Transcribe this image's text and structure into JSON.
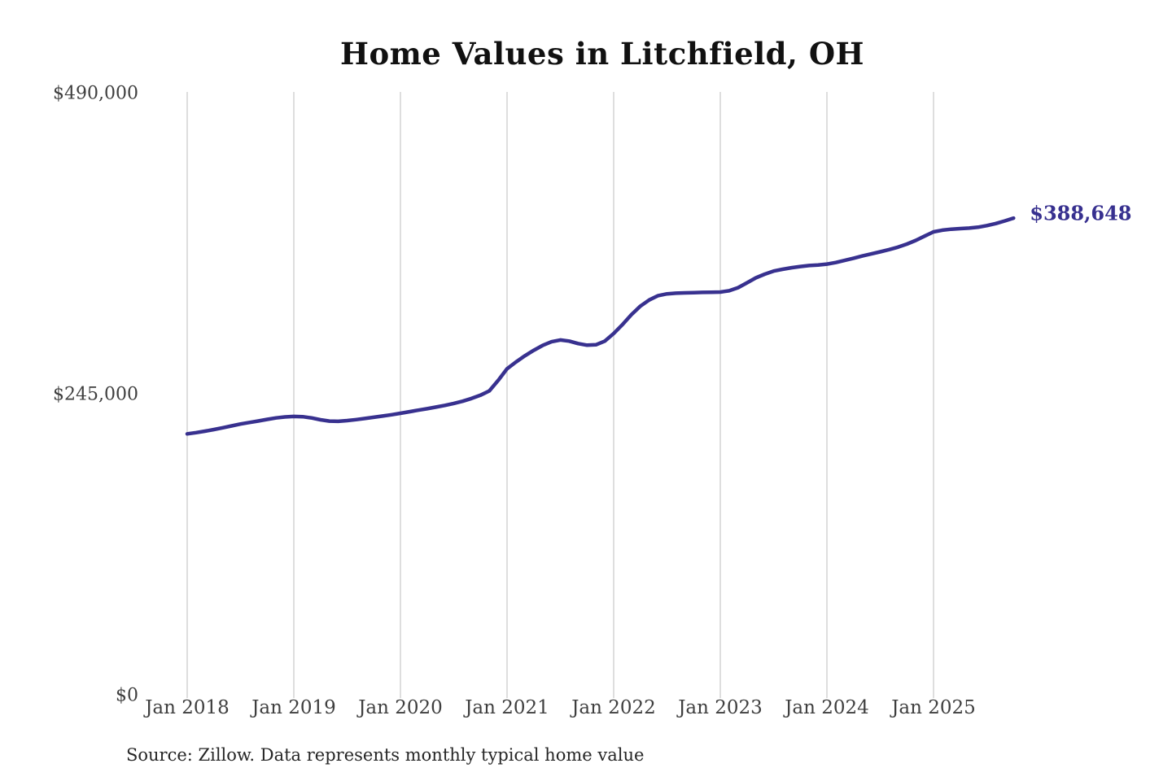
{
  "title": "Home Values in Litchfield, OH",
  "footer": {
    "source": "Source: Zillow. Data represents monthly typical home value"
  },
  "colors": {
    "line": "#38318f",
    "end_label": "#37308f",
    "gridline": "#cccccc",
    "title_text": "#111111",
    "axis_text": "#3f3f3f",
    "source_text": "#262626",
    "background": "#ffffff"
  },
  "chart_data": {
    "type": "line",
    "title": "Home Values in Litchfield, OH",
    "xlabel": "",
    "ylabel": "",
    "ylim": [
      0,
      490000
    ],
    "grid": "vertical-only",
    "legend": "none",
    "end_label": "$388,648",
    "final_value": 388648,
    "x_tick_labels": [
      "Jan 2018",
      "Jan 2019",
      "Jan 2020",
      "Jan 2021",
      "Jan 2022",
      "Jan 2023",
      "Jan 2024",
      "Jan 2025"
    ],
    "y_ticks": [
      {
        "label": "$0",
        "value": 0
      },
      {
        "label": "$245,000",
        "value": 245000
      },
      {
        "label": "$490,000",
        "value": 490000
      }
    ],
    "series": [
      {
        "name": "Monthly typical home value",
        "months": [
          "Jan 2018",
          "Feb 2018",
          "Mar 2018",
          "Apr 2018",
          "May 2018",
          "Jun 2018",
          "Jul 2018",
          "Aug 2018",
          "Sep 2018",
          "Oct 2018",
          "Nov 2018",
          "Dec 2018",
          "Jan 2019",
          "Feb 2019",
          "Mar 2019",
          "Apr 2019",
          "May 2019",
          "Jun 2019",
          "Jul 2019",
          "Aug 2019",
          "Sep 2019",
          "Oct 2019",
          "Nov 2019",
          "Dec 2019",
          "Jan 2020",
          "Feb 2020",
          "Mar 2020",
          "Apr 2020",
          "May 2020",
          "Jun 2020",
          "Jul 2020",
          "Aug 2020",
          "Sep 2020",
          "Oct 2020",
          "Nov 2020",
          "Dec 2020",
          "Jan 2021",
          "Feb 2021",
          "Mar 2021",
          "Apr 2021",
          "May 2021",
          "Jun 2021",
          "Jul 2021",
          "Aug 2021",
          "Sep 2021",
          "Oct 2021",
          "Nov 2021",
          "Dec 2021",
          "Jan 2022",
          "Feb 2022",
          "Mar 2022",
          "Apr 2022",
          "May 2022",
          "Jun 2022",
          "Jul 2022",
          "Aug 2022",
          "Sep 2022",
          "Oct 2022",
          "Nov 2022",
          "Dec 2022",
          "Jan 2023",
          "Feb 2023",
          "Mar 2023",
          "Apr 2023",
          "May 2023",
          "Jun 2023",
          "Jul 2023",
          "Aug 2023",
          "Sep 2023",
          "Oct 2023",
          "Nov 2023",
          "Dec 2023",
          "Jan 2024",
          "Feb 2024",
          "Mar 2024",
          "Apr 2024",
          "May 2024",
          "Jun 2024",
          "Jul 2024",
          "Aug 2024",
          "Sep 2024",
          "Oct 2024",
          "Nov 2024",
          "Dec 2024",
          "Jan 2025",
          "Feb 2025",
          "Mar 2025",
          "Apr 2025",
          "May 2025",
          "Jun 2025",
          "Jul 2025",
          "Aug 2025",
          "Sep 2025",
          "Oct 2025"
        ],
        "values": [
          213000,
          214000,
          215200,
          216500,
          218000,
          219500,
          221000,
          222300,
          223500,
          224800,
          226000,
          226800,
          227200,
          227000,
          226000,
          224500,
          223400,
          223200,
          223800,
          224600,
          225500,
          226500,
          227500,
          228600,
          229800,
          231000,
          232300,
          233500,
          234800,
          236200,
          237800,
          239600,
          241800,
          244500,
          248000,
          256500,
          266000,
          271500,
          276500,
          281000,
          285000,
          288000,
          289400,
          288500,
          286500,
          285200,
          285500,
          288500,
          294700,
          302000,
          310000,
          317000,
          322000,
          325500,
          327000,
          327500,
          327800,
          328000,
          328200,
          328300,
          328400,
          329500,
          332000,
          336000,
          340000,
          343000,
          345500,
          347000,
          348200,
          349200,
          350000,
          350500,
          351200,
          352500,
          354200,
          356000,
          357800,
          359500,
          361200,
          363000,
          365000,
          367500,
          370500,
          374000,
          377400,
          378800,
          379600,
          380100,
          380500,
          381200,
          382500,
          384200,
          386300,
          388648
        ]
      }
    ]
  }
}
